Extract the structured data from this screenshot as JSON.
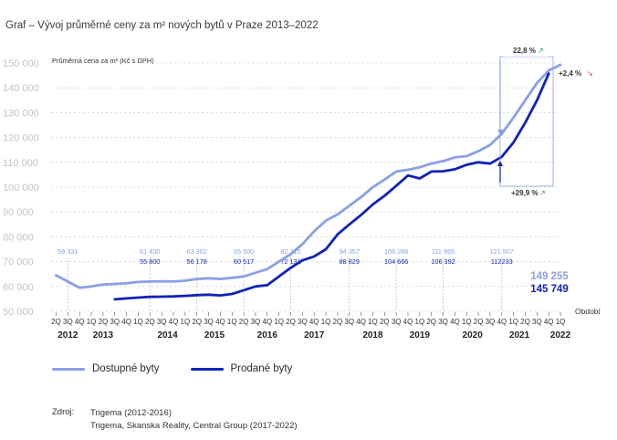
{
  "title": "Graf – Vývoj průměrné ceny za m² nových bytů v Praze  2013–2022",
  "chart_data": {
    "type": "line",
    "ylabel": "Průměrná cena za m² (Kč s DPH)",
    "xlabel": "Období",
    "ylim": [
      50000,
      150000
    ],
    "yticks": [
      "50 000",
      "60 000",
      "70 000",
      "80 000",
      "90 000",
      "100 000",
      "110 000",
      "120 000",
      "130 000",
      "140 000",
      "150 000"
    ],
    "quarters": [
      "2Q",
      "3Q",
      "4Q",
      "1Q",
      "2Q",
      "3Q",
      "4Q",
      "1Q",
      "2Q",
      "3Q",
      "4Q",
      "1Q",
      "2Q",
      "3Q",
      "4Q",
      "1Q",
      "2Q",
      "3Q",
      "4Q",
      "1Q",
      "2Q",
      "3Q",
      "4Q",
      "1Q",
      "2Q",
      "3Q",
      "4Q",
      "1Q",
      "2Q",
      "3Q",
      "4Q",
      "1Q",
      "2Q",
      "3Q",
      "4Q",
      "1Q",
      "2Q",
      "3Q",
      "4Q",
      "1Q",
      "2Q",
      "3Q",
      "4Q",
      "1Q"
    ],
    "years": [
      {
        "label": "2012",
        "index": 1
      },
      {
        "label": "2013",
        "index": 4
      },
      {
        "label": "2014",
        "index": 9.5
      },
      {
        "label": "2015",
        "index": 13.5
      },
      {
        "label": "2016",
        "index": 18
      },
      {
        "label": "2017",
        "index": 22
      },
      {
        "label": "2018",
        "index": 27
      },
      {
        "label": "2019",
        "index": 31
      },
      {
        "label": "2020",
        "index": 35.5
      },
      {
        "label": "2021",
        "index": 39.5
      },
      {
        "label": "2022",
        "index": 43
      }
    ],
    "series": [
      {
        "name": "Dostupné byty",
        "color": "#8a9fe6",
        "start_index": 0,
        "values": [
          64500,
          62000,
          59500,
          60000,
          60800,
          61000,
          61300,
          61800,
          62000,
          62100,
          62000,
          62300,
          63000,
          63300,
          63000,
          63500,
          64000,
          65500,
          67000,
          70000,
          73000,
          77000,
          82200,
          86500,
          89000,
          92500,
          96000,
          100000,
          103000,
          106300,
          107000,
          108000,
          109500,
          110500,
          112000,
          112500,
          114500,
          117000,
          121500,
          128000,
          135000,
          142000,
          147000,
          149255
        ]
      },
      {
        "name": "Prodané byty",
        "color": "#1222b8",
        "start_index": 5,
        "values": [
          54800,
          55200,
          55500,
          55800,
          55900,
          56000,
          56200,
          56500,
          56700,
          56400,
          57000,
          58500,
          60000,
          60500,
          64000,
          67500,
          70500,
          72100,
          75000,
          81000,
          85000,
          88800,
          93000,
          96500,
          100500,
          104700,
          103500,
          106300,
          106400,
          107200,
          109000,
          110000,
          109500,
          112200,
          118000,
          126000,
          135000,
          145749
        ]
      }
    ],
    "annotations": [
      {
        "index": 1,
        "top": "59 331",
        "bottom": ""
      },
      {
        "index": 8,
        "top": "61 430",
        "bottom": "55 800"
      },
      {
        "index": 12,
        "top": "63 302",
        "bottom": "56 178"
      },
      {
        "index": 16,
        "top": "65 500",
        "bottom": "60 517"
      },
      {
        "index": 20,
        "top": "82 215",
        "bottom": "72 131"
      },
      {
        "index": 25,
        "top": "94 357",
        "bottom": "88 829"
      },
      {
        "index": 29,
        "top": "106 266",
        "bottom": "104 666"
      },
      {
        "index": 33,
        "top": "111 965",
        "bottom": "106 392"
      },
      {
        "index": 38,
        "top": "121 507",
        "bottom": "112233"
      }
    ],
    "final_values": {
      "top": "149 255",
      "bottom": "145 749"
    },
    "change_labels": {
      "top": "22,8 %",
      "top_arrow": "↗",
      "right": "+2,4 %",
      "right_arrow": "↘",
      "bottom": "+29,9 %",
      "bottom_arrow": "↗"
    },
    "colors": {
      "light": "#8a9fe6",
      "dark": "#1222b8",
      "grid": "#bfc4cf",
      "axis_text": "#c4c4c4",
      "green_arrow": "#1f9a3a",
      "red_arrow": "#d23b3b"
    }
  },
  "legend": {
    "items": [
      {
        "label": "Dostupné byty",
        "color": "#8a9fe6"
      },
      {
        "label": "Prodané byty",
        "color": "#1222b8"
      }
    ]
  },
  "source": {
    "label": "Zdroj:",
    "lines": [
      "Trigema (2012-2016)",
      "Trigema, Skanska Reality, Central Group (2017-2022)"
    ]
  }
}
